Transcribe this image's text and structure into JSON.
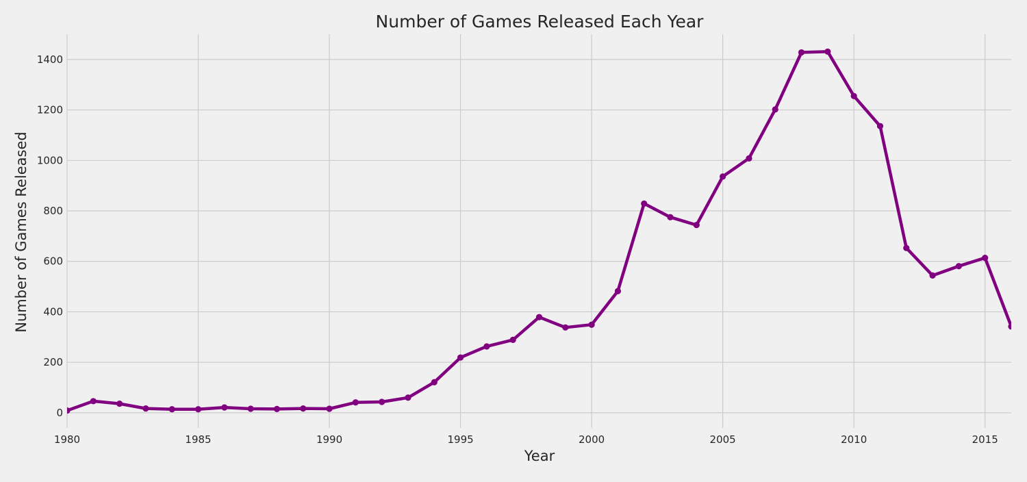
{
  "chart_data": {
    "type": "line",
    "title": "Number of Games Released Each Year",
    "xlabel": "Year",
    "ylabel": "Number of Games Released",
    "xlim": [
      1980,
      2016
    ],
    "ylim": [
      -60,
      1500
    ],
    "xticks": [
      1980,
      1985,
      1990,
      1995,
      2000,
      2005,
      2010,
      2015
    ],
    "yticks": [
      0,
      200,
      400,
      600,
      800,
      1000,
      1200,
      1400
    ],
    "grid": true,
    "line_color": "#800080",
    "background": "#f0f0f0",
    "grid_color": "#cbcbcb",
    "series": [
      {
        "x": [
          1980,
          1981,
          1982,
          1983,
          1984,
          1985,
          1986,
          1987,
          1988,
          1989,
          1990,
          1991,
          1992,
          1993,
          1994,
          1995,
          1996,
          1997,
          1998,
          1999,
          2000,
          2001,
          2002,
          2003,
          2004,
          2005,
          2006,
          2007,
          2008,
          2009,
          2010,
          2011,
          2012,
          2013,
          2014,
          2015,
          2016
        ],
        "y": [
          9,
          46,
          36,
          17,
          14,
          14,
          21,
          16,
          15,
          17,
          16,
          41,
          43,
          60,
          121,
          219,
          263,
          289,
          379,
          338,
          349,
          482,
          829,
          775,
          744,
          936,
          1008,
          1202,
          1428,
          1431,
          1255,
          1136,
          653,
          544,
          581,
          614,
          342
        ]
      }
    ]
  }
}
